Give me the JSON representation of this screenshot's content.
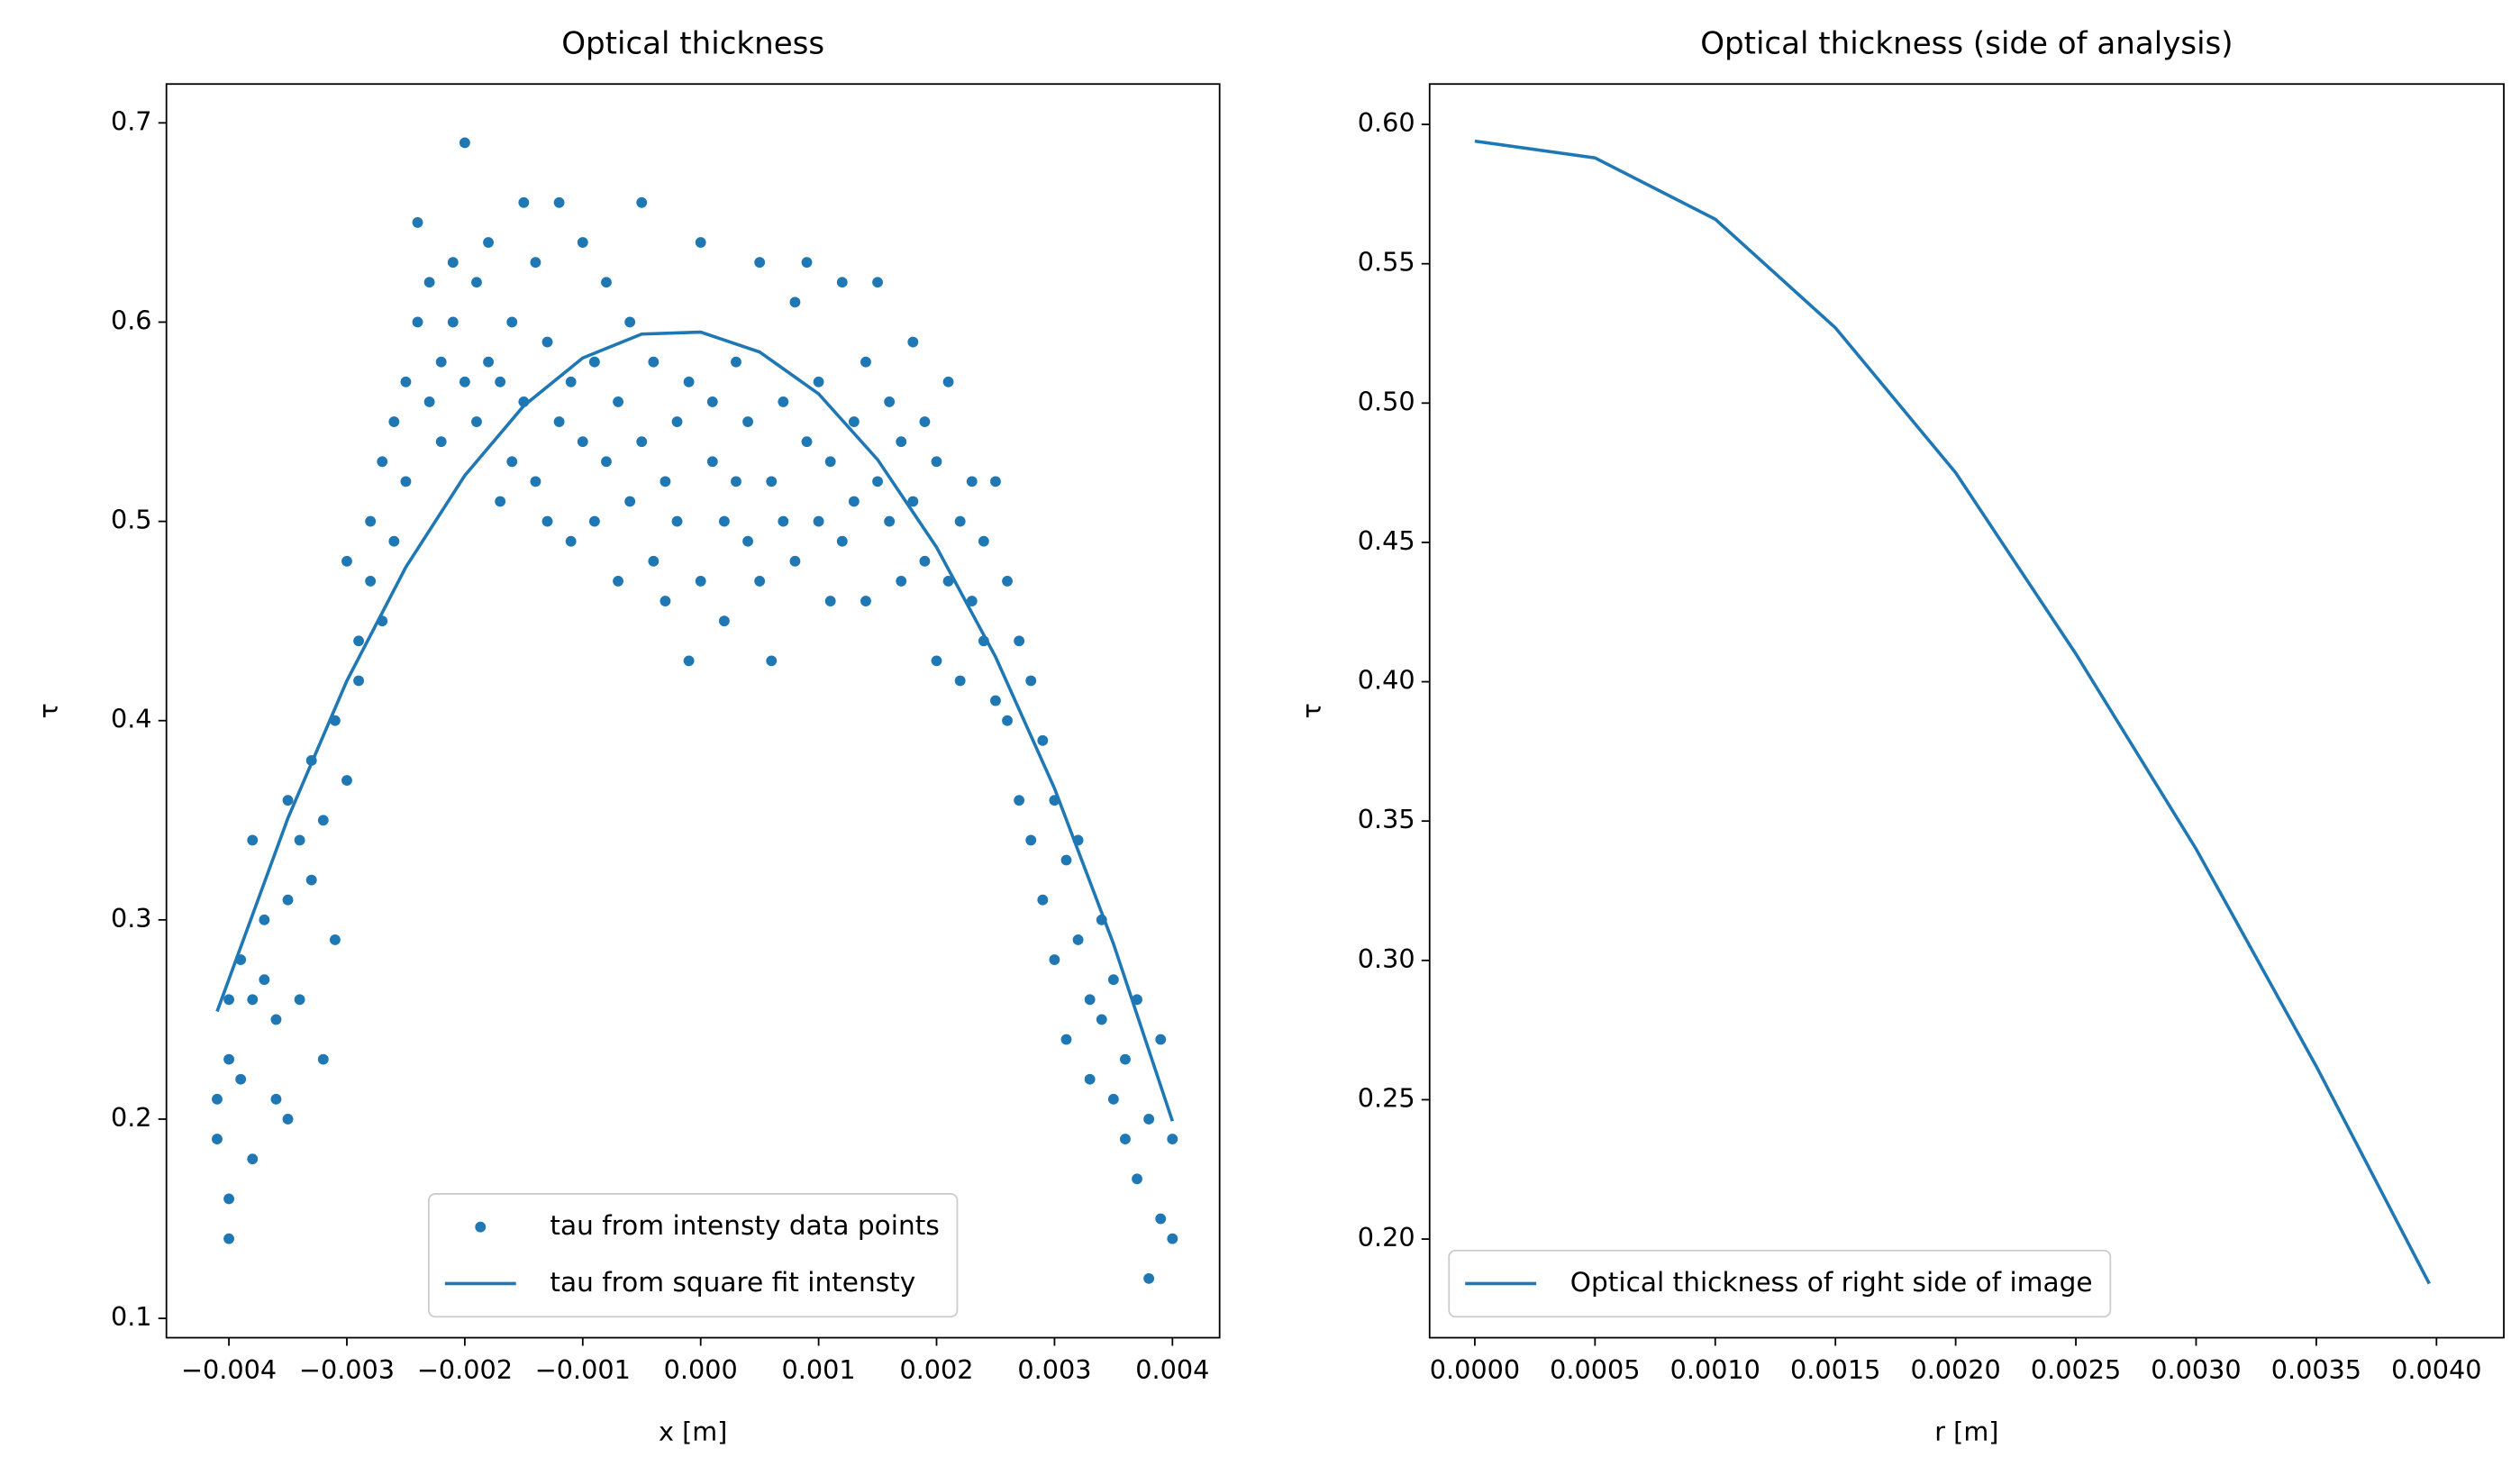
{
  "chart_data": [
    {
      "type": "scatter",
      "title": "Optical thickness",
      "xlabel": "x [m]",
      "ylabel": "τ",
      "xlim": [
        -0.00453,
        0.0044
      ],
      "ylim": [
        0.0903,
        0.7195
      ],
      "xticks": [
        {
          "value": -0.004,
          "label": "−0.004"
        },
        {
          "value": -0.003,
          "label": "−0.003"
        },
        {
          "value": -0.002,
          "label": "−0.002"
        },
        {
          "value": -0.001,
          "label": "−0.001"
        },
        {
          "value": 0,
          "label": "0.000"
        },
        0.001,
        0.002,
        0.003,
        0.004
      ],
      "yticks": [
        0.1,
        0.2,
        0.3,
        0.4,
        0.5,
        0.6,
        0.7
      ],
      "legend_loc": "lower center",
      "series": [
        {
          "name": "tau from intensty data points",
          "type": "scatter",
          "color": "#1f77b4",
          "x": [
            -0.0041,
            -0.0041,
            -0.004,
            -0.004,
            -0.004,
            -0.004,
            -0.0039,
            -0.0039,
            -0.0038,
            -0.0038,
            -0.0038,
            -0.0037,
            -0.0037,
            -0.0036,
            -0.0036,
            -0.0035,
            -0.0035,
            -0.0035,
            -0.0034,
            -0.0034,
            -0.0033,
            -0.0033,
            -0.0032,
            -0.0032,
            -0.0031,
            -0.0031,
            -0.003,
            -0.003,
            -0.0029,
            -0.0029,
            -0.0028,
            -0.0028,
            -0.0027,
            -0.0027,
            -0.0026,
            -0.0026,
            -0.0025,
            -0.0025,
            -0.0024,
            -0.0024,
            -0.0023,
            -0.0023,
            -0.0022,
            -0.0022,
            -0.0021,
            -0.0021,
            -0.002,
            -0.002,
            -0.0019,
            -0.0019,
            -0.0018,
            -0.0018,
            -0.0017,
            -0.0017,
            -0.0016,
            -0.0016,
            -0.0015,
            -0.0015,
            -0.0014,
            -0.0014,
            -0.0013,
            -0.0013,
            -0.0012,
            -0.0012,
            -0.0011,
            -0.0011,
            -0.001,
            -0.001,
            -0.0009,
            -0.0009,
            -0.0008,
            -0.0008,
            -0.0007,
            -0.0007,
            -0.0006,
            -0.0006,
            -0.0005,
            -0.0005,
            -0.0004,
            -0.0004,
            -0.0003,
            -0.0003,
            -0.0002,
            -0.0002,
            -0.0001,
            -0.0001,
            0,
            0,
            0.0001,
            0.0001,
            0.0002,
            0.0002,
            0.0003,
            0.0003,
            0.0004,
            0.0004,
            0.0005,
            0.0005,
            0.0006,
            0.0006,
            0.0007,
            0.0007,
            0.0008,
            0.0008,
            0.0009,
            0.0009,
            0.001,
            0.001,
            0.0011,
            0.0011,
            0.0012,
            0.0012,
            0.0013,
            0.0013,
            0.0014,
            0.0014,
            0.0015,
            0.0015,
            0.0016,
            0.0016,
            0.0017,
            0.0017,
            0.0018,
            0.0018,
            0.0019,
            0.0019,
            0.002,
            0.002,
            0.0021,
            0.0021,
            0.0022,
            0.0022,
            0.0023,
            0.0023,
            0.0024,
            0.0024,
            0.0025,
            0.0025,
            0.0026,
            0.0026,
            0.0027,
            0.0027,
            0.0028,
            0.0028,
            0.0029,
            0.0029,
            0.003,
            0.003,
            0.0031,
            0.0031,
            0.0032,
            0.0032,
            0.0033,
            0.0033,
            0.0034,
            0.0034,
            0.0035,
            0.0035,
            0.0036,
            0.0036,
            0.0037,
            0.0037,
            0.0038,
            0.0038,
            0.0039,
            0.0039,
            0.004,
            0.004
          ],
          "values": [
            0.19,
            0.21,
            0.14,
            0.16,
            0.23,
            0.26,
            0.28,
            0.22,
            0.18,
            0.34,
            0.26,
            0.3,
            0.27,
            0.21,
            0.25,
            0.31,
            0.36,
            0.2,
            0.34,
            0.26,
            0.32,
            0.38,
            0.23,
            0.35,
            0.29,
            0.4,
            0.37,
            0.48,
            0.44,
            0.42,
            0.47,
            0.5,
            0.45,
            0.53,
            0.49,
            0.55,
            0.57,
            0.52,
            0.6,
            0.65,
            0.56,
            0.62,
            0.58,
            0.54,
            0.63,
            0.6,
            0.69,
            0.57,
            0.62,
            0.55,
            0.58,
            0.64,
            0.51,
            0.57,
            0.6,
            0.53,
            0.66,
            0.56,
            0.63,
            0.52,
            0.59,
            0.5,
            0.66,
            0.55,
            0.57,
            0.49,
            0.64,
            0.54,
            0.58,
            0.5,
            0.62,
            0.53,
            0.47,
            0.56,
            0.6,
            0.51,
            0.66,
            0.54,
            0.48,
            0.58,
            0.52,
            0.46,
            0.55,
            0.5,
            0.43,
            0.57,
            0.64,
            0.47,
            0.53,
            0.56,
            0.5,
            0.45,
            0.58,
            0.52,
            0.49,
            0.55,
            0.63,
            0.47,
            0.43,
            0.52,
            0.56,
            0.5,
            0.61,
            0.48,
            0.54,
            0.63,
            0.5,
            0.57,
            0.46,
            0.53,
            0.62,
            0.49,
            0.55,
            0.51,
            0.58,
            0.46,
            0.62,
            0.52,
            0.5,
            0.56,
            0.47,
            0.54,
            0.59,
            0.51,
            0.48,
            0.55,
            0.43,
            0.53,
            0.57,
            0.47,
            0.5,
            0.42,
            0.52,
            0.46,
            0.44,
            0.49,
            0.52,
            0.41,
            0.47,
            0.4,
            0.44,
            0.36,
            0.42,
            0.34,
            0.39,
            0.31,
            0.36,
            0.28,
            0.33,
            0.24,
            0.29,
            0.34,
            0.26,
            0.22,
            0.3,
            0.25,
            0.21,
            0.27,
            0.23,
            0.19,
            0.26,
            0.17,
            0.12,
            0.2,
            0.15,
            0.24,
            0.19,
            0.14
          ]
        },
        {
          "name": "tau from square fit intensty",
          "type": "line",
          "color": "#1f77b4",
          "x": [
            -0.0041,
            -0.0035,
            -0.003,
            -0.0025,
            -0.002,
            -0.0015,
            -0.001,
            -0.0005,
            0,
            0.0005,
            0.001,
            0.0015,
            0.002,
            0.0025,
            0.003,
            0.0035,
            0.004
          ],
          "values": [
            0.254,
            0.351,
            0.42,
            0.477,
            0.523,
            0.558,
            0.582,
            0.594,
            0.595,
            0.585,
            0.564,
            0.531,
            0.487,
            0.432,
            0.366,
            0.288,
            0.199
          ]
        }
      ]
    },
    {
      "type": "line",
      "title": "Optical thickness (side of analysis)",
      "xlabel": "r [m]",
      "ylabel": "τ",
      "xlim": [
        -0.000188,
        0.00428
      ],
      "ylim": [
        0.1646,
        0.6145
      ],
      "xticks": [
        {
          "value": 0,
          "label": "0.0000"
        },
        0.0005,
        {
          "value": 0.001,
          "label": "0.0010"
        },
        0.0015,
        {
          "value": 0.002,
          "label": "0.0020"
        },
        0.0025,
        {
          "value": 0.003,
          "label": "0.0030"
        },
        0.0035,
        {
          "value": 0.004,
          "label": "0.0040"
        }
      ],
      "yticks": [
        {
          "value": 0.2,
          "label": "0.20"
        },
        0.25,
        {
          "value": 0.3,
          "label": "0.30"
        },
        0.35,
        {
          "value": 0.4,
          "label": "0.40"
        },
        0.45,
        {
          "value": 0.5,
          "label": "0.50"
        },
        0.55,
        {
          "value": 0.6,
          "label": "0.60"
        }
      ],
      "legend_loc": "lower left",
      "series": [
        {
          "name": "Optical thickness of right side of image",
          "type": "line",
          "color": "#1f77b4",
          "x": [
            0,
            0.0005,
            0.001,
            0.0015,
            0.002,
            0.0025,
            0.003,
            0.0035,
            0.00397
          ],
          "values": [
            0.594,
            0.588,
            0.566,
            0.527,
            0.475,
            0.41,
            0.34,
            0.262,
            0.184
          ]
        }
      ]
    }
  ]
}
